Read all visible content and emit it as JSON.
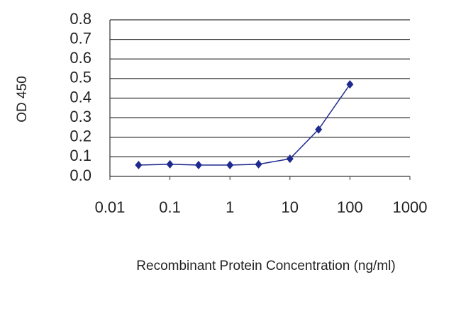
{
  "chart_data": {
    "type": "line",
    "x_label": "Recombinant Protein Concentration (ng/ml)",
    "y_label": "OD 450",
    "x": [
      0.03,
      0.1,
      0.3,
      1,
      3,
      10,
      30,
      100
    ],
    "series": [
      {
        "color": "#1f2a8f",
        "values": [
          0.058,
          0.062,
          0.058,
          0.058,
          0.062,
          0.09,
          0.24,
          0.47
        ]
      }
    ],
    "xscale": "log",
    "xlim": [
      0.01,
      1000
    ],
    "xticks": [
      0.01,
      0.1,
      1,
      10,
      100,
      1000
    ],
    "ylim": [
      0,
      0.8
    ],
    "yticks": [
      {
        "value": 0,
        "label": "0.0"
      },
      0.1,
      0.2,
      0.3,
      0.4,
      0.5,
      0.6,
      0.7,
      0.8
    ],
    "grid": true
  }
}
